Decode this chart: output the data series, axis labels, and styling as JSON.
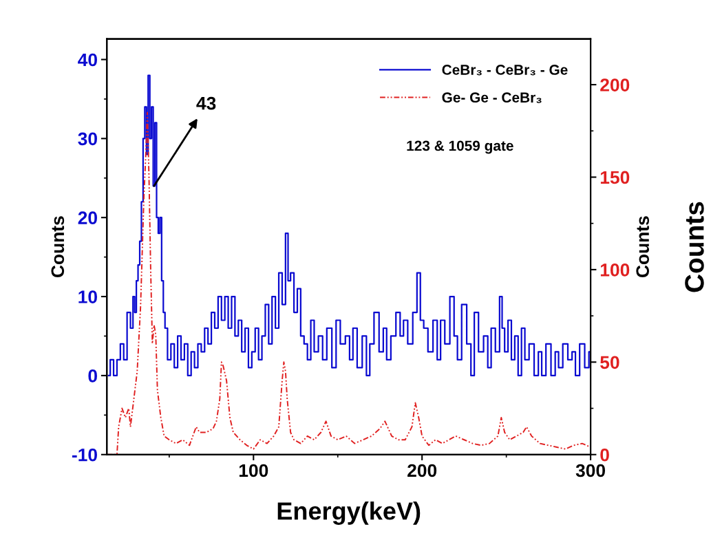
{
  "chart_data": {
    "type": "line",
    "xlabel": "Energy(keV)",
    "ylabel": "Counts",
    "y2label": "Counts",
    "xlim": [
      13,
      300
    ],
    "xticks": [
      100,
      200,
      300
    ],
    "ylim": [
      -10,
      42.6
    ],
    "yticks": [
      -10,
      0,
      10,
      20,
      30,
      40
    ],
    "y2lim": [
      0,
      224.7
    ],
    "y2ticks": [
      0,
      50,
      100,
      150,
      200
    ],
    "grid": false,
    "legend": "top right",
    "marker": "none",
    "series": [
      {
        "name": "CeBr₃ - CeBr₃ - Ge",
        "type": "step",
        "color": "#0a0ad0",
        "line_style": "solid",
        "x": [
          14,
          16,
          18,
          20,
          22,
          24,
          26,
          28,
          29,
          30,
          31,
          32,
          33,
          34,
          35,
          36,
          37,
          38,
          39,
          40,
          41,
          42,
          43,
          44,
          45,
          46,
          47,
          48,
          50,
          52,
          54,
          56,
          58,
          60,
          62,
          64,
          66,
          68,
          70,
          72,
          74,
          76,
          78,
          80,
          82,
          84,
          86,
          88,
          90,
          92,
          94,
          96,
          98,
          100,
          102,
          104,
          106,
          108,
          110,
          112,
          114,
          116,
          118,
          120,
          121,
          123,
          125,
          127,
          129,
          131,
          133,
          135,
          137,
          140,
          142,
          145,
          148,
          150,
          153,
          156,
          158,
          160,
          163,
          166,
          168,
          170,
          173,
          176,
          178,
          180,
          183,
          186,
          188,
          190,
          193,
          196,
          198,
          200,
          202,
          205,
          208,
          210,
          212,
          215,
          218,
          220,
          222,
          225,
          228,
          230,
          232,
          235,
          238,
          240,
          242,
          245,
          247,
          248,
          250,
          252,
          254,
          256,
          258,
          260,
          262,
          265,
          268,
          270,
          272,
          275,
          278,
          280,
          282,
          285,
          288,
          290,
          292,
          295,
          298,
          300
        ],
        "values": [
          0,
          2,
          0,
          2,
          4,
          2,
          8,
          6,
          10,
          8,
          12,
          14,
          17,
          22,
          30,
          34,
          28,
          38,
          30,
          34,
          24,
          32,
          20,
          18,
          20,
          12,
          8,
          6,
          2,
          4,
          1,
          5,
          2,
          4,
          0,
          3,
          1,
          4,
          3,
          6,
          4,
          8,
          6,
          10,
          7,
          10,
          6,
          10,
          5,
          7,
          3,
          6,
          1,
          3,
          6,
          2,
          5,
          9,
          4,
          10,
          6,
          13,
          9,
          18,
          12,
          13,
          8,
          11,
          5,
          4,
          2,
          7,
          3,
          5,
          2,
          6,
          1,
          7,
          4,
          5,
          2,
          6,
          1,
          5,
          0,
          4,
          8,
          3,
          6,
          2,
          5,
          8,
          5,
          7,
          4,
          8,
          13,
          7,
          6,
          3,
          7,
          2,
          7,
          4,
          10,
          5,
          2,
          9,
          4,
          0,
          8,
          3,
          5,
          1,
          6,
          3,
          10,
          6,
          3,
          7,
          2,
          5,
          0,
          6,
          2,
          4,
          0,
          3,
          0,
          4,
          0,
          3,
          1,
          4,
          2,
          3,
          0,
          4,
          1,
          3
        ]
      },
      {
        "name": "Ge- Ge - CeBr₃",
        "axis": "y2",
        "color": "#e02020",
        "line_style": "dotted",
        "x": [
          13,
          19,
          20,
          22,
          24,
          26,
          27,
          29,
          31,
          33,
          35,
          36,
          37,
          38,
          39,
          40,
          41,
          42,
          43,
          45,
          47,
          50,
          54,
          58,
          62,
          64,
          66,
          68,
          72,
          76,
          78,
          80,
          81,
          82,
          84,
          86,
          88,
          92,
          96,
          100,
          104,
          108,
          112,
          115,
          117,
          118,
          119,
          120,
          122,
          124,
          128,
          132,
          136,
          140,
          143,
          146,
          150,
          155,
          160,
          165,
          170,
          175,
          178,
          182,
          186,
          190,
          194,
          196,
          198,
          200,
          204,
          208,
          212,
          216,
          220,
          225,
          230,
          235,
          240,
          245,
          247,
          249,
          252,
          256,
          260,
          262,
          265,
          270,
          275,
          280,
          285,
          290,
          295,
          300
        ],
        "values": [
          0,
          0,
          15,
          25,
          20,
          25,
          15,
          30,
          45,
          80,
          140,
          160,
          185,
          150,
          100,
          60,
          70,
          65,
          35,
          20,
          10,
          8,
          6,
          8,
          5,
          10,
          15,
          12,
          12,
          14,
          18,
          30,
          50,
          48,
          40,
          20,
          12,
          8,
          5,
          3,
          8,
          6,
          10,
          15,
          40,
          50,
          45,
          30,
          12,
          8,
          6,
          10,
          8,
          12,
          18,
          10,
          8,
          10,
          6,
          8,
          10,
          14,
          18,
          10,
          8,
          8,
          15,
          28,
          20,
          10,
          5,
          8,
          6,
          8,
          10,
          8,
          6,
          5,
          6,
          10,
          20,
          12,
          8,
          10,
          12,
          15,
          10,
          6,
          5,
          4,
          3,
          5,
          6,
          4
        ]
      }
    ],
    "annotations": [
      {
        "text": "43",
        "x": 41,
        "y": 24
      },
      "123 & 1059 gate",
      "Counts"
    ]
  }
}
